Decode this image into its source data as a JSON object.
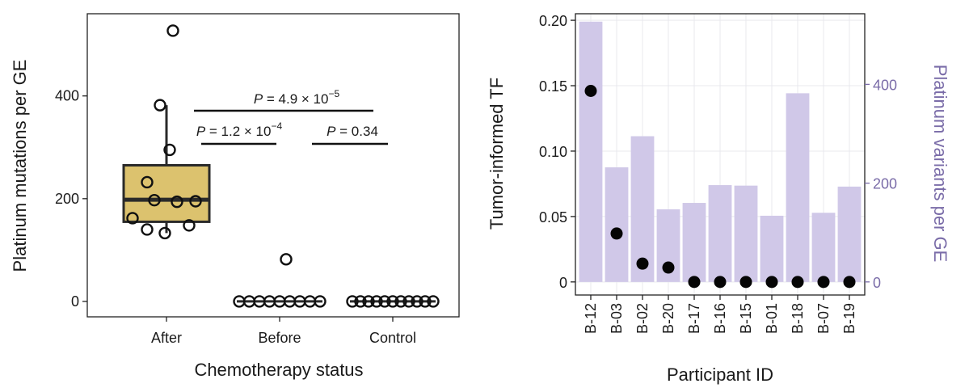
{
  "chart_data": [
    {
      "type": "box",
      "xlabel": "Chemotherapy status",
      "ylabel": "Platinum mutations per GE",
      "ylim": [
        -30,
        560
      ],
      "yticks": [
        0,
        200,
        400
      ],
      "categories": [
        "After",
        "Before",
        "Control"
      ],
      "box_color": "#dcc26e",
      "groups": [
        {
          "name": "After",
          "box": {
            "q1": 155,
            "median": 198,
            "q3": 265,
            "whisker_low": 133,
            "whisker_high": 382
          },
          "points": [
            527,
            382,
            295,
            232,
            197,
            195,
            194,
            162,
            148,
            140,
            133
          ]
        },
        {
          "name": "Before",
          "box": {
            "q1": 0,
            "median": 0,
            "q3": 0,
            "whisker_low": 0,
            "whisker_high": 0
          },
          "points": [
            82,
            0,
            0,
            0,
            0,
            0,
            0,
            0,
            0,
            0
          ]
        },
        {
          "name": "Control",
          "box": {
            "q1": 0,
            "median": 0,
            "q3": 0,
            "whisker_low": 0,
            "whisker_high": 0
          },
          "points": [
            0,
            0,
            0,
            0,
            0,
            0,
            0,
            0,
            0,
            0,
            0
          ]
        }
      ],
      "comparisons": [
        {
          "from": "After",
          "to": "Control",
          "label_prefix": "P",
          "label_rest": " = 4.9 × 10",
          "exponent": "−5"
        },
        {
          "from": "After",
          "to": "Before",
          "label_prefix": "P",
          "label_rest": " = 1.2 × 10",
          "exponent": "−4"
        },
        {
          "from": "Before",
          "to": "Control",
          "label_prefix": "P",
          "label_rest": " = 0.34",
          "exponent": ""
        }
      ]
    },
    {
      "type": "bar+scatter",
      "xlabel": "Participant ID",
      "ylabel": "Tumor-informed TF",
      "ylabel_right": "Platinum variants per GE",
      "ylim": [
        -0.01,
        0.205
      ],
      "ylim_right": [
        -26.5,
        543
      ],
      "yticks": [
        0,
        0.05,
        0.1,
        0.15,
        0.2
      ],
      "ytick_labels": [
        "0",
        "0.05",
        "0.10",
        "0.15",
        "0.20"
      ],
      "yticks_right": [
        0,
        200,
        400
      ],
      "bar_color": "#d0c8e8",
      "right_axis_color": "#7a6ca8",
      "categories": [
        "B-12",
        "B-03",
        "B-02",
        "B-20",
        "B-17",
        "B-16",
        "B-15",
        "B-01",
        "B-18",
        "B-07",
        "B-19"
      ],
      "bars_right_axis": [
        527,
        232,
        295,
        147,
        160,
        196,
        195,
        134,
        382,
        140,
        193
      ],
      "points_left_axis": [
        0.146,
        0.037,
        0.014,
        0.011,
        0,
        0,
        0,
        0,
        0,
        0,
        0
      ]
    }
  ]
}
